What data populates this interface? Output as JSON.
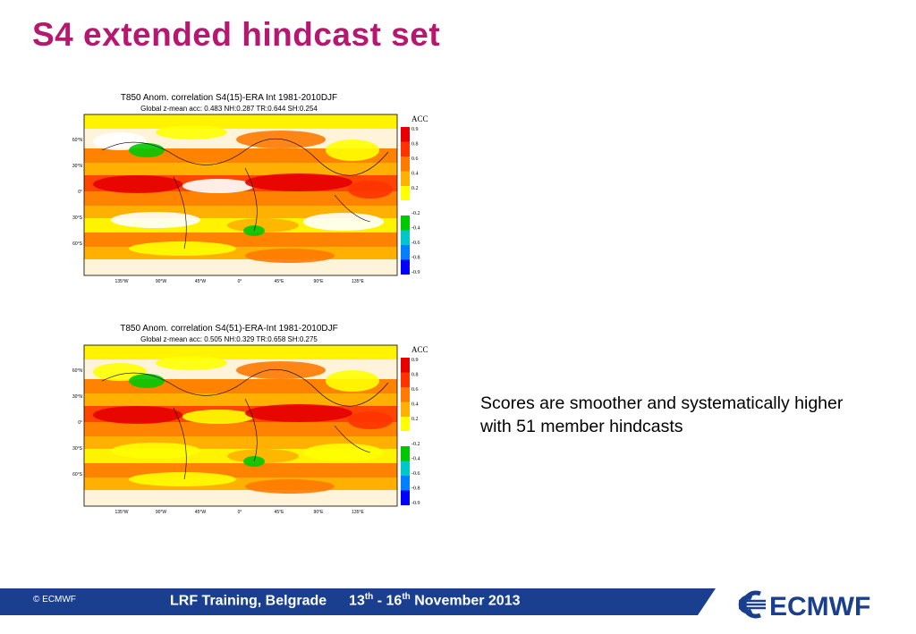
{
  "slide": {
    "title": "S4 extended hindcast set",
    "note": "Scores are smoother and systematically higher with 51 member hindcasts"
  },
  "maps": [
    {
      "title": "T850 Anom. correlation S4(15)-ERA Int  1981-2010DJF",
      "subtitle": "Global z-mean acc: 0.483 NH:0.287 TR:0.644 SH:0.254"
    },
    {
      "title": "T850 Anom. correlation S4(51)-ERA-Int  1981-2010DJF",
      "subtitle": "Global z-mean acc: 0.505 NH:0.329 TR:0.658 SH:0.275"
    }
  ],
  "map_axes": {
    "lat_labels": [
      "60°N",
      "30°N",
      "0°",
      "30°S",
      "60°S"
    ],
    "lon_labels": [
      "135°W",
      "90°W",
      "45°W",
      "0°",
      "45°E",
      "90°E",
      "135°E"
    ]
  },
  "legend": {
    "title": "ACC",
    "labels": [
      "0.9",
      "0.8",
      "0.6",
      "0.4",
      "0.2",
      "-0.2",
      "-0.4",
      "-0.6",
      "-0.8",
      "-0.9"
    ],
    "colors": [
      "#e60000",
      "#ff3300",
      "#ff7a00",
      "#ffb000",
      "#ffff00",
      "#ffffff",
      "#00c800",
      "#00c8c8",
      "#0080ff",
      "#0000ff"
    ]
  },
  "footer": {
    "copyright": "© ECMWF",
    "training": "LRF Training, Belgrade",
    "date_d1": "13",
    "sup1": "th",
    "date_sep": " - ",
    "date_d2": "16",
    "sup2": "th",
    "date_rest": " November 2013",
    "logo_text": "ECMWF"
  },
  "colors": {
    "title": "#b5186e",
    "footer_band": "#1a3f8f",
    "logo": "#1a3f8f"
  }
}
